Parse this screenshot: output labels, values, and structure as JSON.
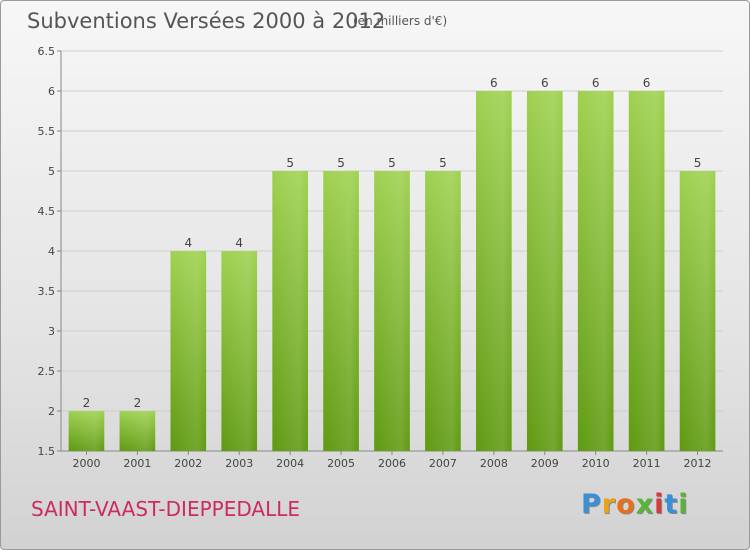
{
  "title": "Subventions Versées 2000 à 2012",
  "unit": "(en milliers d'€)",
  "commune": "SAINT-VAAST-DIEPPEDALLE",
  "logo": {
    "letters": [
      "P",
      "r",
      "o",
      "x",
      "i",
      "t",
      "i"
    ],
    "colors": [
      "#3a8fd6",
      "#e8a21b",
      "#e8701b",
      "#5ab43a",
      "#d63a3a",
      "#3a8fd6",
      "#5ab43a"
    ]
  },
  "colors": {
    "bar_top": "#9fd150",
    "bar_bottom": "#5f9a12",
    "grid": "#cfcfcf",
    "text": "#444"
  },
  "chart_data": {
    "type": "bar",
    "title": "Subventions Versées 2000 à 2012",
    "ylabel": "",
    "xlabel": "",
    "categories": [
      "2000",
      "2001",
      "2002",
      "2003",
      "2004",
      "2005",
      "2006",
      "2007",
      "2008",
      "2009",
      "2010",
      "2011",
      "2012"
    ],
    "values": [
      2,
      2,
      4,
      4,
      5,
      5,
      5,
      5,
      6,
      6,
      6,
      6,
      5
    ],
    "ylim": [
      1.5,
      6.5
    ],
    "yticks": [
      "1.5",
      "2",
      "2.5",
      "3",
      "3.5",
      "4",
      "4.5",
      "5",
      "5.5",
      "6",
      "6.5"
    ],
    "grid": true
  }
}
